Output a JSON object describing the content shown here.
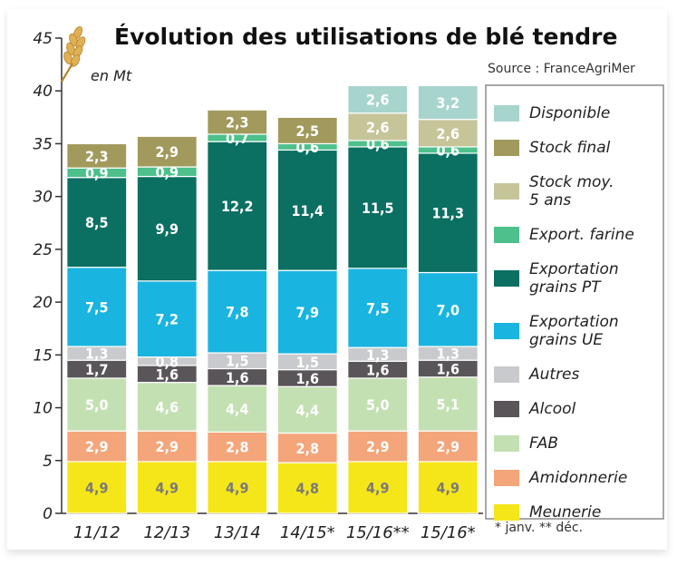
{
  "title": "Évolution des utilisations de blé tendre",
  "unit": "en Mt",
  "source": "Source : FranceAgriMer",
  "footnote": "* janv. ** déc.",
  "chart_data": {
    "type": "bar",
    "stacked": true,
    "categories": [
      "11/12",
      "12/13",
      "13/14",
      "14/15*",
      "15/16**",
      "15/16*"
    ],
    "ylim": [
      0,
      45
    ],
    "yticks": [
      0,
      5,
      10,
      15,
      20,
      25,
      30,
      35,
      40,
      45
    ],
    "legend_position": "right",
    "series": [
      {
        "name": "Meunerie",
        "color": "#f5e61a",
        "label_color": "#7a7a7a",
        "values": [
          4.9,
          4.9,
          4.9,
          4.8,
          4.9,
          4.9
        ],
        "labels": [
          "4,9",
          "4,9",
          "4,9",
          "4,8",
          "4,9",
          "4,9"
        ]
      },
      {
        "name": "Amidonnerie",
        "color": "#f4a57a",
        "label_color": "#ffffff",
        "values": [
          2.9,
          2.9,
          2.8,
          2.8,
          2.9,
          2.9
        ],
        "labels": [
          "2,9",
          "2,9",
          "2,8",
          "2,8",
          "2,9",
          "2,9"
        ]
      },
      {
        "name": "FAB",
        "color": "#c3e0b2",
        "label_color": "#ffffff",
        "values": [
          5.0,
          4.6,
          4.4,
          4.4,
          5.0,
          5.1
        ],
        "labels": [
          "5,0",
          "4,6",
          "4,4",
          "4,4",
          "5,0",
          "5,1"
        ]
      },
      {
        "name": "Alcool",
        "color": "#5a5558",
        "label_color": "#ffffff",
        "values": [
          1.7,
          1.6,
          1.6,
          1.6,
          1.6,
          1.6
        ],
        "labels": [
          "1,7",
          "1,6",
          "1,6",
          "1,6",
          "1,6",
          "1,6"
        ]
      },
      {
        "name": "Autres",
        "color": "#c9cacd",
        "label_color": "#ffffff",
        "values": [
          1.3,
          0.8,
          1.5,
          1.5,
          1.3,
          1.3
        ],
        "labels": [
          "1,3",
          "0,8",
          "1,5",
          "1,5",
          "1,3",
          "1,3"
        ]
      },
      {
        "name": "Exportation grains UE",
        "color": "#1ab4e0",
        "label_color": "#ffffff",
        "values": [
          7.5,
          7.2,
          7.8,
          7.9,
          7.5,
          7.0
        ],
        "labels": [
          "7,5",
          "7,2",
          "7,8",
          "7,9",
          "7,5",
          "7,0"
        ]
      },
      {
        "name": "Exportation grains PT",
        "color": "#0b6f62",
        "label_color": "#ffffff",
        "values": [
          8.5,
          9.9,
          12.2,
          11.4,
          11.5,
          11.3
        ],
        "labels": [
          "8,5",
          "9,9",
          "12,2",
          "11,4",
          "11,5",
          "11,3"
        ]
      },
      {
        "name": "Export. farine",
        "color": "#4dc08c",
        "label_color": "#ffffff",
        "values": [
          0.9,
          0.9,
          0.7,
          0.6,
          0.6,
          0.6
        ],
        "labels": [
          "0,9",
          "0,9",
          "0,7",
          "0,6",
          "0,6",
          "0,6"
        ]
      },
      {
        "name": "Stock moy. 5 ans",
        "color": "#c6c59a",
        "label_color": "#ffffff",
        "values": [
          0,
          0,
          0,
          0,
          2.6,
          2.6
        ],
        "labels": [
          "",
          "",
          "",
          "",
          "2,6",
          "2,6"
        ]
      },
      {
        "name": "Stock final",
        "color": "#a19a5c",
        "label_color": "#ffffff",
        "values": [
          2.3,
          2.9,
          2.3,
          2.5,
          0,
          0
        ],
        "labels": [
          "2,3",
          "2,9",
          "2,3",
          "2,5",
          "",
          ""
        ]
      },
      {
        "name": "Disponible",
        "color": "#a7d5cd",
        "label_color": "#ffffff",
        "values": [
          0,
          0,
          0,
          0,
          2.6,
          3.2
        ],
        "labels": [
          "",
          "",
          "",
          "",
          "2,6",
          "3,2"
        ]
      }
    ],
    "legend": [
      {
        "label_lines": [
          "Disponible"
        ],
        "color": "#a7d5cd"
      },
      {
        "label_lines": [
          "Stock final"
        ],
        "color": "#a19a5c"
      },
      {
        "label_lines": [
          "Stock moy.",
          "5 ans"
        ],
        "color": "#c6c59a"
      },
      {
        "label_lines": [
          "Export. farine"
        ],
        "color": "#4dc08c"
      },
      {
        "label_lines": [
          "Exportation",
          "grains PT"
        ],
        "color": "#0b6f62"
      },
      {
        "label_lines": [
          "Exportation",
          "grains UE"
        ],
        "color": "#1ab4e0"
      },
      {
        "label_lines": [
          "Autres"
        ],
        "color": "#c9cacd"
      },
      {
        "label_lines": [
          "Alcool"
        ],
        "color": "#5a5558"
      },
      {
        "label_lines": [
          "FAB"
        ],
        "color": "#c3e0b2"
      },
      {
        "label_lines": [
          "Amidonnerie"
        ],
        "color": "#f4a57a"
      },
      {
        "label_lines": [
          "Meunerie"
        ],
        "color": "#f5e61a"
      }
    ]
  }
}
